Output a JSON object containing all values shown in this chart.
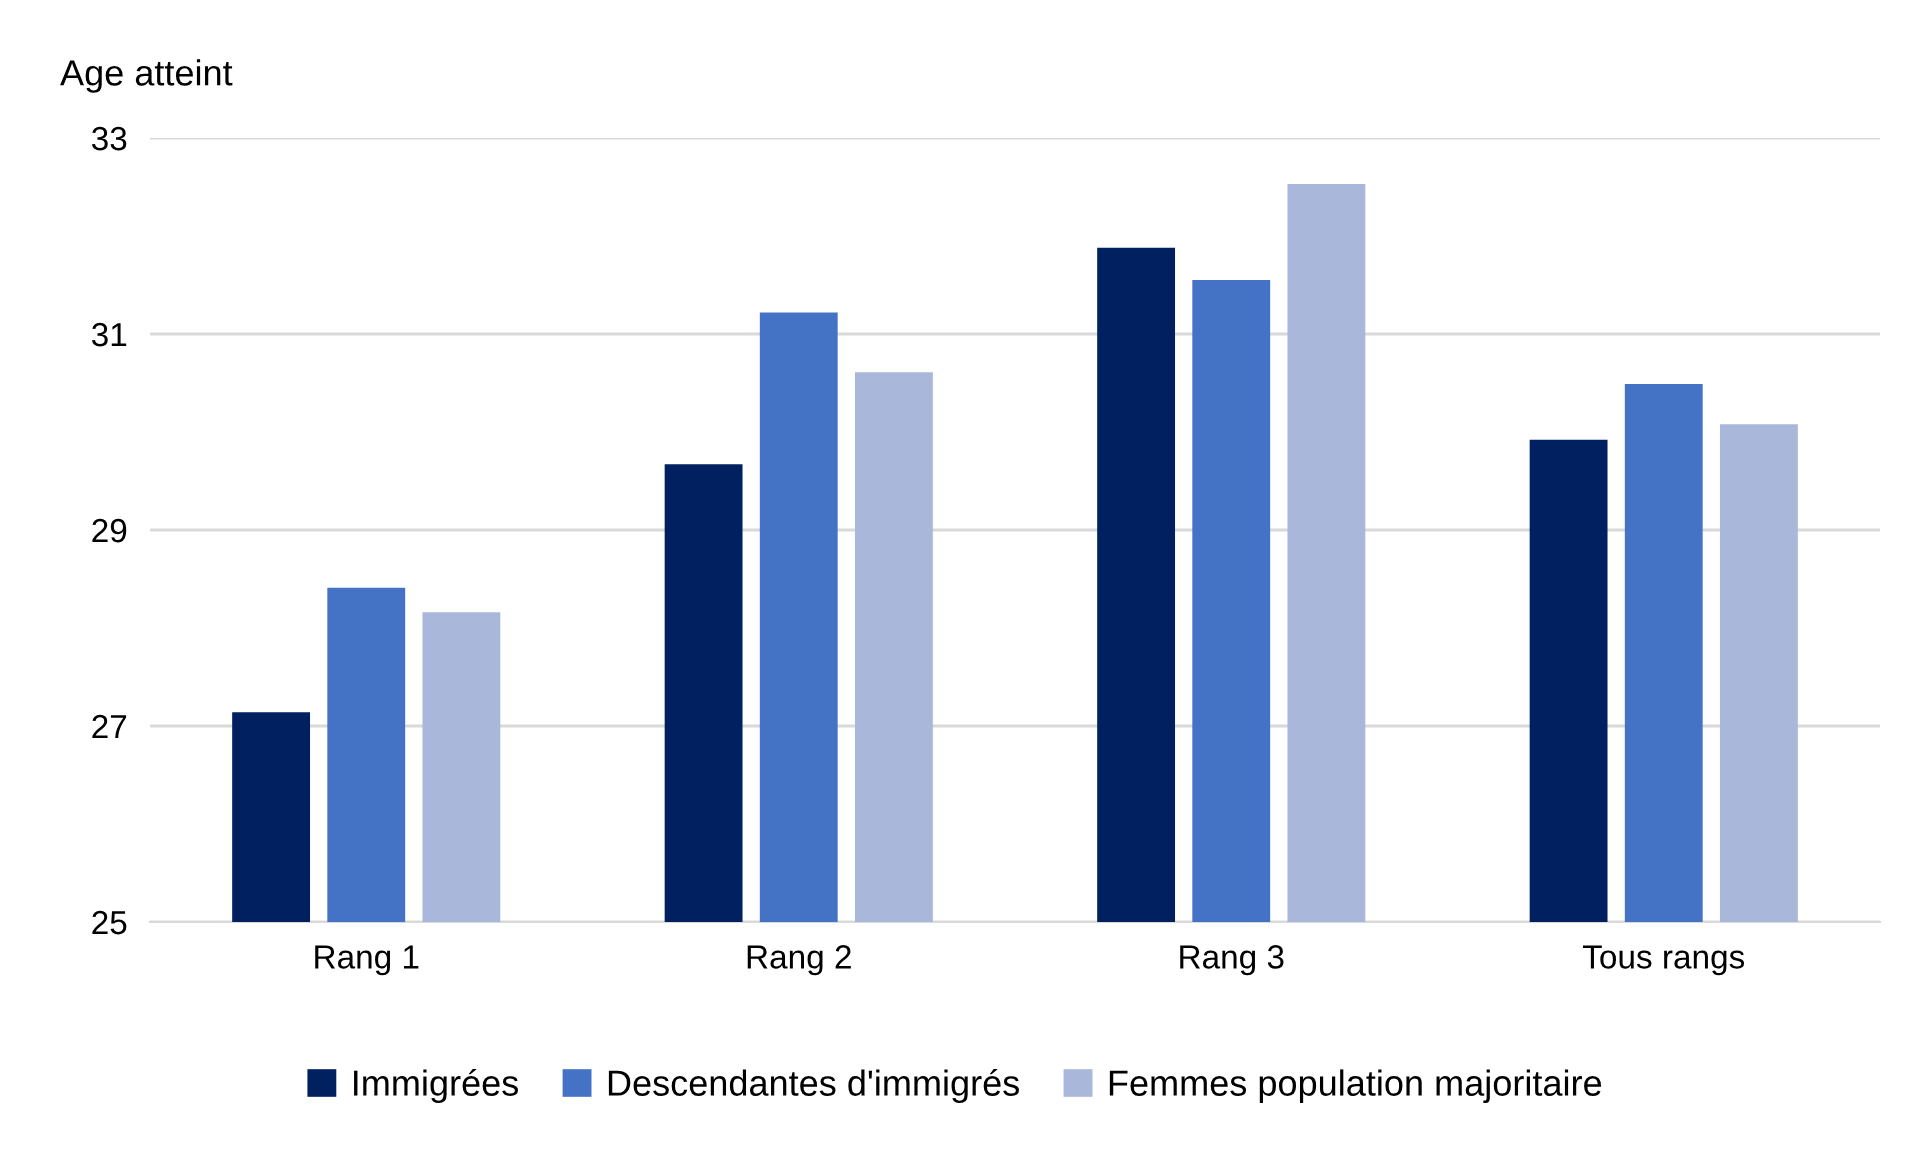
{
  "chart_data": {
    "type": "bar",
    "ylabel": "Age atteint",
    "categories": [
      "Rang 1",
      "Rang 2",
      "Rang 3",
      "Tous rangs"
    ],
    "series": [
      {
        "name": "Immigrées",
        "color": "#002060",
        "values": [
          27.14,
          29.67,
          31.88,
          29.92
        ]
      },
      {
        "name": "Descendantes d'immigrés",
        "color": "#4472c4",
        "values": [
          28.41,
          31.22,
          31.55,
          30.49
        ]
      },
      {
        "name": "Femmes population majoritaire",
        "color": "#a9b7db",
        "values": [
          28.16,
          30.61,
          32.53,
          30.08
        ]
      }
    ],
    "ylim": [
      25,
      33
    ],
    "yticks": [
      25,
      27,
      29,
      31,
      33
    ],
    "grid": "y",
    "legend": "bottom"
  }
}
